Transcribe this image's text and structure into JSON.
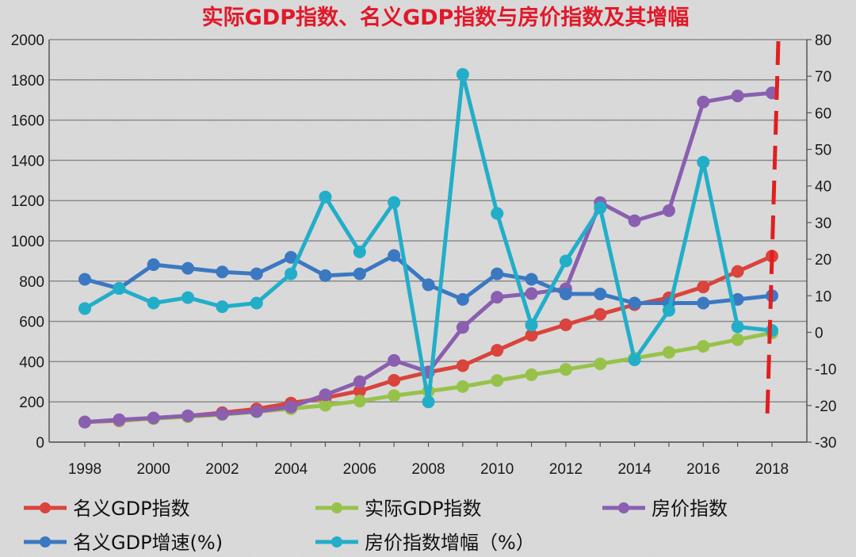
{
  "chart_data": {
    "type": "line",
    "title": "实际GDP指数、名义GDP指数与房价指数及其增幅",
    "x": [
      1998,
      1999,
      2000,
      2001,
      2002,
      2003,
      2004,
      2005,
      2006,
      2007,
      2008,
      2009,
      2010,
      2011,
      2012,
      2013,
      2014,
      2015,
      2016,
      2017,
      2018
    ],
    "x_ticks": [
      "1998",
      "2000",
      "2002",
      "2004",
      "2006",
      "2008",
      "2010",
      "2012",
      "2014",
      "2016",
      "2018"
    ],
    "y_left": {
      "min": 0,
      "max": 2000,
      "ticks": [
        "0",
        "200",
        "400",
        "600",
        "800",
        "1000",
        "1200",
        "1400",
        "1600",
        "1800",
        "2000"
      ]
    },
    "y_right": {
      "min": -30,
      "max": 80,
      "ticks": [
        "-30",
        "-20",
        "-10",
        "0",
        "10",
        "20",
        "30",
        "40",
        "50",
        "60",
        "70",
        "80"
      ]
    },
    "series": [
      {
        "name": "名义GDP指数",
        "axis": "left",
        "color": "#d9443c",
        "values": [
          100,
          106,
          118,
          130,
          146,
          165,
          194,
          220,
          254,
          307,
          347,
          380,
          456,
          531,
          583,
          635,
          683,
          717,
          771,
          848,
          924
        ]
      },
      {
        "name": "实际GDP指数",
        "axis": "left",
        "color": "#97c24a",
        "values": [
          100,
          108,
          117,
          126,
          137,
          151,
          166,
          183,
          204,
          231,
          253,
          276,
          306,
          335,
          361,
          389,
          417,
          446,
          476,
          509,
          543
        ]
      },
      {
        "name": "房价指数",
        "axis": "left",
        "color": "#8a5fb0",
        "values": [
          100,
          111,
          120,
          131,
          140,
          152,
          175,
          235,
          300,
          406,
          349,
          570,
          720,
          738,
          762,
          1190,
          1100,
          1150,
          1690,
          1720,
          1735
        ]
      },
      {
        "name": "名义GDP增速(%)",
        "axis": "right",
        "color": "#3b78c2",
        "values": [
          14.5,
          12,
          18.5,
          17.5,
          16.5,
          16,
          20.5,
          15.5,
          16,
          21,
          13,
          9,
          16,
          14.5,
          10.5,
          10.5,
          8,
          8,
          8,
          9,
          10
        ]
      },
      {
        "name": "房价指数增幅（%）",
        "axis": "right",
        "color": "#22aec9",
        "values": [
          6.5,
          12,
          8,
          9.5,
          7,
          8,
          16,
          37,
          22,
          35.5,
          -19,
          70.5,
          32.5,
          2,
          19.5,
          34,
          -7.5,
          6,
          46.5,
          1.5,
          0.5
        ]
      }
    ],
    "projection_line": {
      "x": 2018,
      "color": "#e11f1f",
      "style": "dashed"
    },
    "legend_position": "bottom"
  }
}
